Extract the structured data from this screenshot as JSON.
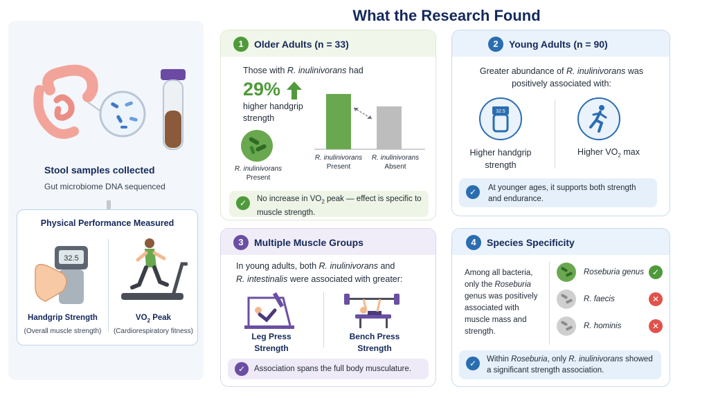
{
  "title": "What the Research Found",
  "left": {
    "stool_title": "Stool samples collected",
    "stool_sub": "Gut microbiome DNA sequenced",
    "perf_title": "Physical Performance Measured",
    "dynamometer_reading": "32.5",
    "handgrip_label": "Handgrip Strength",
    "handgrip_sub": "(Overall muscle strength)",
    "vo2_label_a": "VO",
    "vo2_label_sub": "2",
    "vo2_label_b": " Peak",
    "vo2_sub": "(Cardiorespiratory fitness)"
  },
  "panel1": {
    "number": "1",
    "title": "Older Adults (n = 33)",
    "intro_a": "Those with ",
    "intro_species": "R. inulinivorans",
    "intro_b": " had",
    "stat": "29%",
    "stat_desc": "higher handgrip strength",
    "icon_species": "R. inulinivorans",
    "icon_label": "Present",
    "chart_data": {
      "type": "bar",
      "categories": [
        "R. inulinivorans Present",
        "R. inulinivorans Absent"
      ],
      "cat_species": [
        "R. inulinivorans",
        "R. inulinivorans"
      ],
      "cat_status": [
        "Present",
        "Absent"
      ],
      "values": [
        129,
        100
      ],
      "colors": [
        "#6aa84f",
        "#bdbdbd"
      ]
    },
    "note_a": "No increase in VO",
    "note_sub": "2",
    "note_b": " peak — effect is specific to muscle strength."
  },
  "panel2": {
    "number": "2",
    "title": "Young Adults (n = 90)",
    "intro_a": "Greater abundance of ",
    "intro_species": "R. inulinivorans",
    "intro_b": " was positively associated with:",
    "item1": "Higher handgrip strength",
    "item2_a": "Higher VO",
    "item2_sub": "2",
    "item2_b": " max",
    "device_reading": "32.5",
    "note": "At younger ages, it supports both strength and endurance."
  },
  "panel3": {
    "number": "3",
    "title": "Multiple Muscle Groups",
    "intro_a": "In young adults, both ",
    "species1": "R. inulinivorans",
    "intro_b": " and",
    "species2": "R. intestinalis",
    "intro_c": " were associated with greater:",
    "item1": "Leg Press Strength",
    "item2": "Bench Press Strength",
    "note": "Association spans the full body musculature."
  },
  "panel4": {
    "number": "4",
    "title": "Species Specificity",
    "desc_a": "Among all bacteria, only the ",
    "desc_genus": "Roseburia",
    "desc_b": " genus was positively associated with muscle mass and strength.",
    "rows": [
      {
        "name": "Roseburia genus",
        "status": "yes"
      },
      {
        "name": "R. faecis",
        "status": "no"
      },
      {
        "name": "R. hominis",
        "status": "no"
      }
    ],
    "note_a": "Within ",
    "note_genus": "Roseburia",
    "note_b": ", only ",
    "note_species": "R. inulinivorans",
    "note_c": " showed a significant strength association."
  },
  "colors": {
    "green": "#4f9a3a",
    "blue": "#2a6db0",
    "purple": "#6a4fa3",
    "red": "#e0524b",
    "navy": "#14285a"
  },
  "icons": [
    "intestine-icon",
    "microscope-bacteria-icon",
    "test-tube-icon",
    "dynamometer-icon",
    "treadmill-runner-icon",
    "bacteria-icon",
    "running-person-icon",
    "leg-press-icon",
    "bench-press-icon",
    "check-icon",
    "x-icon"
  ]
}
